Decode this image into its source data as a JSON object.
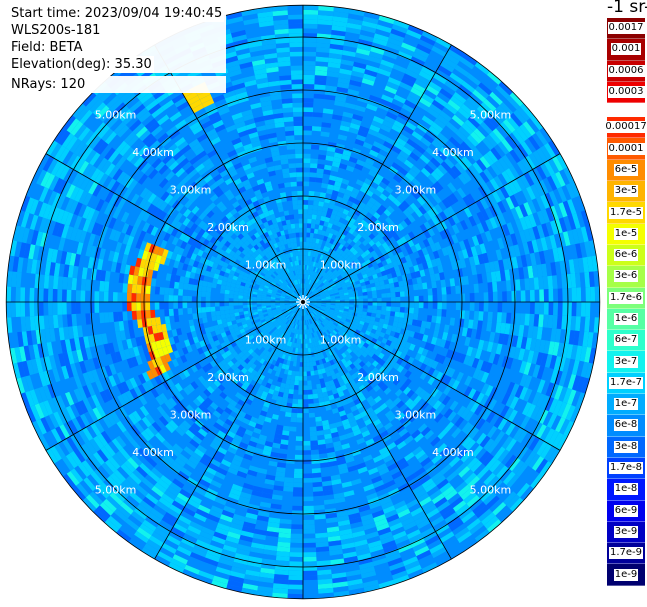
{
  "info": {
    "start_time": "Start time: 2023/09/04 19:40:45",
    "instrument": "WLS200s-181",
    "field": "Field: BETA",
    "elevation": "Elevation(deg): 35.30",
    "nrays": "NRays: 120"
  },
  "colorbar": {
    "unit_title": "-1 sr-1",
    "upper_group": [
      {
        "label": "0.0017",
        "color": "#8b0000"
      },
      {
        "label": "0.001",
        "color": "#a80000"
      },
      {
        "label": "0.0006",
        "color": "#c80000"
      },
      {
        "label": "0.0003",
        "color": "#ee0000"
      }
    ],
    "lower_group": [
      {
        "label": "0.00017",
        "color": "#ff2a00"
      },
      {
        "label": "0.0001",
        "color": "#ff5a00"
      },
      {
        "label": "6e-5",
        "color": "#ff8c00"
      },
      {
        "label": "3e-5",
        "color": "#ffb400"
      },
      {
        "label": "1.7e-5",
        "color": "#ffd800"
      },
      {
        "label": "1e-5",
        "color": "#f4ff00"
      },
      {
        "label": "6e-6",
        "color": "#ccff1a"
      },
      {
        "label": "3e-6",
        "color": "#a6ff48"
      },
      {
        "label": "1.7e-6",
        "color": "#7cff7a"
      },
      {
        "label": "1e-6",
        "color": "#56ffa4"
      },
      {
        "label": "6e-7",
        "color": "#2effcc"
      },
      {
        "label": "3e-7",
        "color": "#12f2ee"
      },
      {
        "label": "1.7e-7",
        "color": "#00d0ff"
      },
      {
        "label": "1e-7",
        "color": "#00acff"
      },
      {
        "label": "6e-8",
        "color": "#008cff"
      },
      {
        "label": "3e-8",
        "color": "#0068ff"
      },
      {
        "label": "1.7e-8",
        "color": "#0040ff"
      },
      {
        "label": "1e-8",
        "color": "#0018ff"
      },
      {
        "label": "6e-9",
        "color": "#0000ee"
      },
      {
        "label": "3e-9",
        "color": "#0000c4"
      },
      {
        "label": "1.7e-9",
        "color": "#00009a"
      },
      {
        "label": "1e-9",
        "color": "#000070"
      }
    ]
  },
  "range_rings": {
    "labels": [
      "1.00km",
      "2.00km",
      "3.00km",
      "4.00km",
      "5.00km"
    ],
    "radius_km": [
      1,
      2,
      3,
      4,
      5
    ],
    "max_range_km": 5.6
  },
  "background_colors": [
    "#0068ff",
    "#008cff",
    "#00acff",
    "#00d0ff",
    "#12f2ee"
  ],
  "colors": {
    "near_field": "#00acff",
    "aerosol_band": [
      "#ffd800",
      "#ff8c00",
      "#ff2a00",
      "#f4ff00"
    ]
  }
}
